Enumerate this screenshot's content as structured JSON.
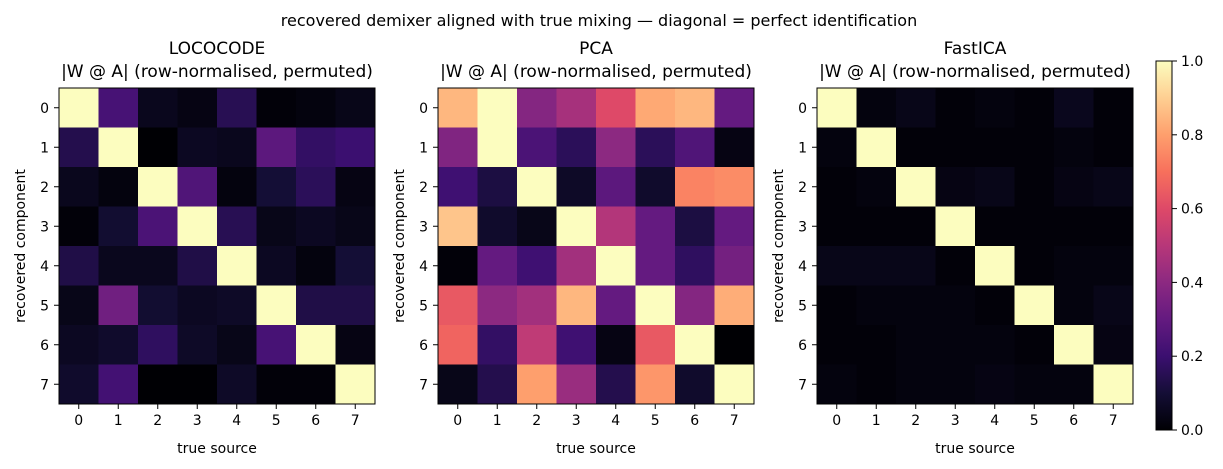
{
  "suptitle": "recovered demixer aligned with true mixing — diagonal = perfect identification",
  "colorbar": {
    "ticks": [
      "0.0",
      "0.2",
      "0.4",
      "0.6",
      "0.8",
      "1.0"
    ],
    "tick_values": [
      0.0,
      0.2,
      0.4,
      0.6,
      0.8,
      1.0
    ],
    "colormap": "magma"
  },
  "chart_data": [
    {
      "type": "heatmap",
      "title": "LOCOCODE\n|W @ A| (row-normalised, permuted)",
      "title_line1": "LOCOCODE",
      "title_line2": "|W @ A| (row-normalised, permuted)",
      "xlabel": "true source",
      "ylabel": "recovered component",
      "xticks": [
        "0",
        "1",
        "2",
        "3",
        "4",
        "5",
        "6",
        "7"
      ],
      "yticks": [
        "0",
        "1",
        "2",
        "3",
        "4",
        "5",
        "6",
        "7"
      ],
      "vlim": [
        0,
        1
      ],
      "values": [
        [
          1.0,
          0.23,
          0.05,
          0.03,
          0.15,
          0.01,
          0.02,
          0.04
        ],
        [
          0.14,
          1.0,
          0.0,
          0.06,
          0.05,
          0.28,
          0.18,
          0.2
        ],
        [
          0.05,
          0.02,
          1.0,
          0.25,
          0.02,
          0.1,
          0.16,
          0.03
        ],
        [
          0.01,
          0.09,
          0.24,
          1.0,
          0.15,
          0.04,
          0.06,
          0.04
        ],
        [
          0.13,
          0.05,
          0.05,
          0.13,
          1.0,
          0.06,
          0.02,
          0.1
        ],
        [
          0.04,
          0.33,
          0.09,
          0.06,
          0.07,
          1.0,
          0.13,
          0.13
        ],
        [
          0.06,
          0.08,
          0.17,
          0.07,
          0.04,
          0.23,
          1.0,
          0.03
        ],
        [
          0.08,
          0.22,
          0.0,
          0.0,
          0.07,
          0.01,
          0.01,
          1.0
        ]
      ]
    },
    {
      "type": "heatmap",
      "title": "PCA\n|W @ A| (row-normalised, permuted)",
      "title_line1": "PCA",
      "title_line2": "|W @ A| (row-normalised, permuted)",
      "xlabel": "true source",
      "ylabel": "recovered component",
      "xticks": [
        "0",
        "1",
        "2",
        "3",
        "4",
        "5",
        "6",
        "7"
      ],
      "yticks": [
        "0",
        "1",
        "2",
        "3",
        "4",
        "5",
        "6",
        "7"
      ],
      "vlim": [
        0,
        1
      ],
      "values": [
        [
          0.85,
          1.0,
          0.38,
          0.46,
          0.6,
          0.82,
          0.85,
          0.3
        ],
        [
          0.37,
          1.0,
          0.24,
          0.16,
          0.4,
          0.16,
          0.25,
          0.03
        ],
        [
          0.21,
          0.12,
          1.0,
          0.07,
          0.28,
          0.08,
          0.74,
          0.76
        ],
        [
          0.88,
          0.08,
          0.04,
          1.0,
          0.49,
          0.3,
          0.12,
          0.3
        ],
        [
          0.01,
          0.3,
          0.21,
          0.45,
          1.0,
          0.3,
          0.17,
          0.34
        ],
        [
          0.64,
          0.4,
          0.45,
          0.85,
          0.3,
          1.0,
          0.38,
          0.83
        ],
        [
          0.67,
          0.18,
          0.52,
          0.21,
          0.03,
          0.64,
          1.0,
          0.0
        ],
        [
          0.04,
          0.14,
          0.8,
          0.43,
          0.14,
          0.78,
          0.08,
          1.0
        ]
      ]
    },
    {
      "type": "heatmap",
      "title": "FastICA\n|W @ A| (row-normalised, permuted)",
      "title_line1": "FastICA",
      "title_line2": "|W @ A| (row-normalised, permuted)",
      "xlabel": "true source",
      "ylabel": "recovered component",
      "xticks": [
        "0",
        "1",
        "2",
        "3",
        "4",
        "5",
        "6",
        "7"
      ],
      "yticks": [
        "0",
        "1",
        "2",
        "3",
        "4",
        "5",
        "6",
        "7"
      ],
      "vlim": [
        0,
        1
      ],
      "values": [
        [
          1.0,
          0.02,
          0.04,
          0.01,
          0.02,
          0.01,
          0.05,
          0.01
        ],
        [
          0.02,
          1.0,
          0.01,
          0.01,
          0.01,
          0.01,
          0.02,
          0.01
        ],
        [
          0.01,
          0.02,
          1.0,
          0.03,
          0.04,
          0.01,
          0.03,
          0.04
        ],
        [
          0.01,
          0.01,
          0.01,
          1.0,
          0.01,
          0.01,
          0.01,
          0.01
        ],
        [
          0.04,
          0.04,
          0.04,
          0.01,
          1.0,
          0.01,
          0.02,
          0.02
        ],
        [
          0.01,
          0.02,
          0.02,
          0.02,
          0.01,
          1.0,
          0.02,
          0.04
        ],
        [
          0.01,
          0.01,
          0.02,
          0.02,
          0.02,
          0.01,
          1.0,
          0.03
        ],
        [
          0.02,
          0.01,
          0.02,
          0.02,
          0.03,
          0.02,
          0.02,
          1.0
        ]
      ]
    }
  ]
}
